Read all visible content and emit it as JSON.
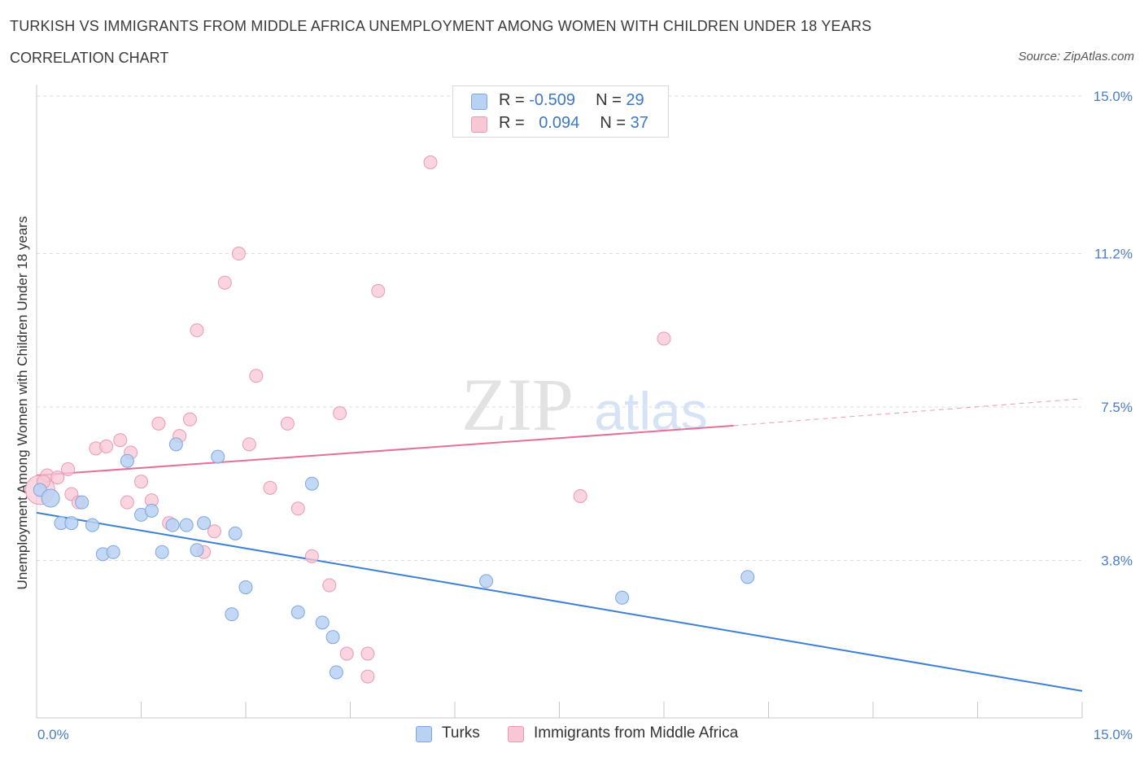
{
  "header": {
    "title": "TURKISH VS IMMIGRANTS FROM MIDDLE AFRICA UNEMPLOYMENT AMONG WOMEN WITH CHILDREN UNDER 18 YEARS",
    "subtitle": "CORRELATION CHART",
    "source": "Source: ZipAtlas.com"
  },
  "watermark": {
    "zip": "ZIP",
    "atlas": "atlas"
  },
  "legend_top": {
    "rows": [
      {
        "r_label": "R = ",
        "r_value": "-0.509",
        "n_label": "N = ",
        "n_value": "29"
      },
      {
        "r_label": "R = ",
        "r_value": "0.094",
        "n_label": "N = ",
        "n_value": "37"
      }
    ]
  },
  "legend_bottom": {
    "series1": "Turks",
    "series2": "Immigrants from Middle Africa"
  },
  "colors": {
    "turks_fill": "#b9d1f3",
    "turks_stroke": "#7ea6dd",
    "turks_line": "#3d7fd4",
    "africa_fill": "#f8c6d4",
    "africa_stroke": "#e99ab3",
    "africa_line": "#e2709a",
    "tick_text": "#4a7cc7",
    "grid": "#dcdcdc"
  },
  "chart_data": {
    "type": "scatter",
    "title": "TURKISH VS IMMIGRANTS FROM MIDDLE AFRICA UNEMPLOYMENT AMONG WOMEN WITH CHILDREN UNDER 18 YEARS",
    "subtitle": "CORRELATION CHART",
    "ylabel": "Unemployment Among Women with Children Under 18 years",
    "xlabel": "",
    "xlim": [
      0,
      15
    ],
    "ylim": [
      0,
      15
    ],
    "x_tick_labels": [
      "0.0%",
      "15.0%"
    ],
    "y_ticks": [
      3.8,
      7.5,
      11.2,
      15.0
    ],
    "y_tick_labels": [
      "3.8%",
      "7.5%",
      "11.2%",
      "15.0%"
    ],
    "grid": true,
    "legend_position": "top-center",
    "series": [
      {
        "name": "Turks",
        "points": [
          [
            0.05,
            5.5
          ],
          [
            0.2,
            5.3
          ],
          [
            0.35,
            4.7
          ],
          [
            0.5,
            4.7
          ],
          [
            0.65,
            5.2
          ],
          [
            0.8,
            4.65
          ],
          [
            0.95,
            3.95
          ],
          [
            1.1,
            4.0
          ],
          [
            1.3,
            6.2
          ],
          [
            1.5,
            4.9
          ],
          [
            1.65,
            5.0
          ],
          [
            1.8,
            4.0
          ],
          [
            1.95,
            4.65
          ],
          [
            2.0,
            6.6
          ],
          [
            2.15,
            4.65
          ],
          [
            2.3,
            4.05
          ],
          [
            2.4,
            4.7
          ],
          [
            2.6,
            6.3
          ],
          [
            2.85,
            4.45
          ],
          [
            3.0,
            3.15
          ],
          [
            2.8,
            2.5
          ],
          [
            3.75,
            2.55
          ],
          [
            3.95,
            5.65
          ],
          [
            4.1,
            2.3
          ],
          [
            4.25,
            1.95
          ],
          [
            4.3,
            1.1
          ],
          [
            6.45,
            3.3
          ],
          [
            8.4,
            2.9
          ],
          [
            10.2,
            3.4
          ]
        ],
        "trend": {
          "x": [
            0,
            15
          ],
          "y": [
            4.95,
            0.65
          ]
        }
      },
      {
        "name": "Immigrants from Middle Africa",
        "points": [
          [
            0.15,
            5.85
          ],
          [
            0.3,
            5.8
          ],
          [
            0.45,
            6.0
          ],
          [
            0.5,
            5.4
          ],
          [
            0.6,
            5.2
          ],
          [
            0.85,
            6.5
          ],
          [
            1.0,
            6.55
          ],
          [
            1.2,
            6.7
          ],
          [
            1.3,
            5.2
          ],
          [
            1.35,
            6.4
          ],
          [
            1.5,
            5.7
          ],
          [
            1.65,
            5.25
          ],
          [
            1.75,
            7.1
          ],
          [
            1.9,
            4.7
          ],
          [
            2.05,
            6.8
          ],
          [
            2.2,
            7.2
          ],
          [
            2.3,
            9.35
          ],
          [
            2.4,
            4.0
          ],
          [
            2.55,
            4.5
          ],
          [
            2.7,
            10.5
          ],
          [
            2.9,
            11.2
          ],
          [
            3.05,
            6.6
          ],
          [
            3.15,
            8.25
          ],
          [
            3.35,
            5.55
          ],
          [
            3.6,
            7.1
          ],
          [
            3.75,
            5.05
          ],
          [
            3.95,
            3.9
          ],
          [
            4.2,
            3.2
          ],
          [
            4.35,
            7.35
          ],
          [
            4.45,
            1.55
          ],
          [
            4.75,
            1.55
          ],
          [
            4.75,
            1.0
          ],
          [
            4.9,
            10.3
          ],
          [
            5.65,
            13.4
          ],
          [
            7.8,
            5.35
          ],
          [
            9.0,
            9.15
          ],
          [
            0.1,
            5.7
          ]
        ],
        "trend": {
          "x": [
            0,
            10
          ],
          "y": [
            5.85,
            7.05
          ]
        },
        "trend_dashed": {
          "x": [
            10,
            15
          ],
          "y": [
            7.05,
            7.7
          ]
        }
      }
    ]
  }
}
